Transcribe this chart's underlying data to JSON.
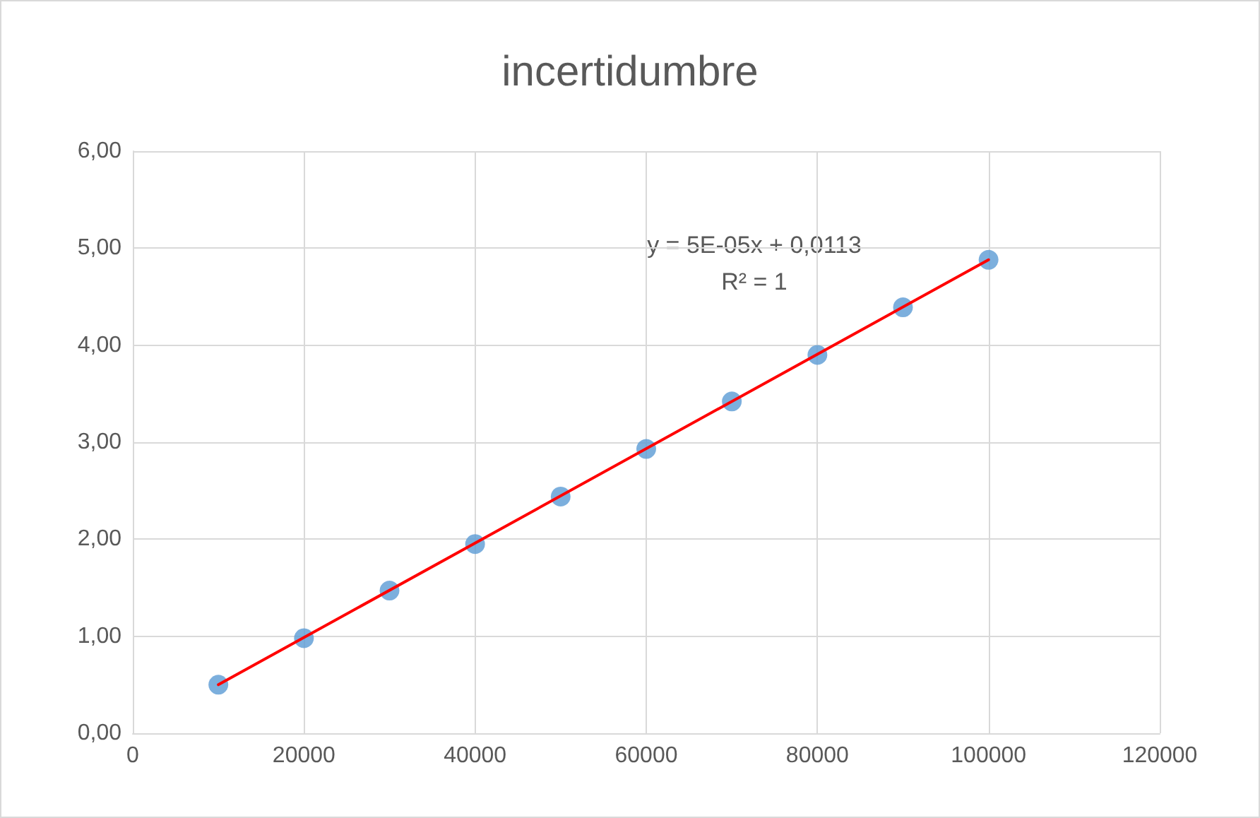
{
  "chart_data": {
    "type": "scatter",
    "title": "incertidumbre",
    "annotations": [
      "y = 5E-05x + 0,0113",
      "R² = 1"
    ],
    "xlim": [
      0,
      120000
    ],
    "xticks": [
      0,
      20000,
      40000,
      60000,
      80000,
      100000,
      120000
    ],
    "ylim": [
      0,
      6
    ],
    "yticks": [
      {
        "value": 0,
        "label": "0,00"
      },
      {
        "value": 1,
        "label": "1,00"
      },
      {
        "value": 2,
        "label": "2,00"
      },
      {
        "value": 3,
        "label": "3,00"
      },
      {
        "value": 4,
        "label": "4,00"
      },
      {
        "value": 5,
        "label": "5,00"
      },
      {
        "value": 6,
        "label": "6,00"
      }
    ],
    "grid": true,
    "marker": "circle",
    "series": [
      {
        "type": "scatter",
        "color": "#5b9bd5",
        "x": [
          10000,
          20000,
          30000,
          40000,
          50000,
          60000,
          70000,
          80000,
          90000,
          100000
        ],
        "values": [
          0.5,
          0.98,
          1.47,
          1.95,
          2.44,
          2.93,
          3.42,
          3.9,
          4.39,
          4.88
        ]
      },
      {
        "type": "line",
        "color": "#ff0000",
        "marker": "none",
        "line_style": "solid",
        "x": [
          10000,
          100000
        ],
        "values": [
          0.5,
          4.88
        ]
      }
    ]
  }
}
